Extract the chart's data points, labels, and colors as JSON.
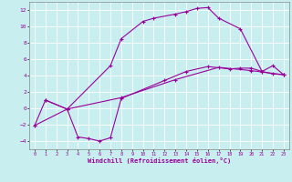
{
  "title": "",
  "xlabel": "Windchill (Refroidissement éolien,°C)",
  "bg_color": "#c8eef0",
  "line_color": "#990099",
  "grid_color": "#ffffff",
  "xlim": [
    -0.5,
    23.5
  ],
  "ylim": [
    -5.0,
    13.0
  ],
  "yticks": [
    -4,
    -2,
    0,
    2,
    4,
    6,
    8,
    10,
    12
  ],
  "xticks": [
    0,
    1,
    2,
    3,
    4,
    5,
    6,
    7,
    8,
    9,
    10,
    11,
    12,
    13,
    14,
    15,
    16,
    17,
    18,
    19,
    20,
    21,
    22,
    23
  ],
  "line1_x": [
    1,
    3,
    7,
    8,
    10,
    11,
    13,
    14,
    15,
    16,
    17,
    19,
    21,
    22,
    23
  ],
  "line1_y": [
    1,
    -0.1,
    5.2,
    8.5,
    10.6,
    11.0,
    11.5,
    11.8,
    12.2,
    12.3,
    11.0,
    9.7,
    4.5,
    5.2,
    4.1
  ],
  "line2_x": [
    0,
    1,
    3,
    4,
    5,
    6,
    7,
    8,
    12,
    14,
    16,
    18,
    19,
    20,
    21,
    22,
    23
  ],
  "line2_y": [
    -2.1,
    1,
    -0.1,
    -3.5,
    -3.7,
    -4.0,
    -3.6,
    1.2,
    3.4,
    4.5,
    5.1,
    4.8,
    4.9,
    4.9,
    4.5,
    4.2,
    4.1
  ],
  "line3_x": [
    0,
    3,
    8,
    13,
    17,
    20,
    23
  ],
  "line3_y": [
    -2.1,
    -0.1,
    1.3,
    3.5,
    5.0,
    4.6,
    4.1
  ]
}
